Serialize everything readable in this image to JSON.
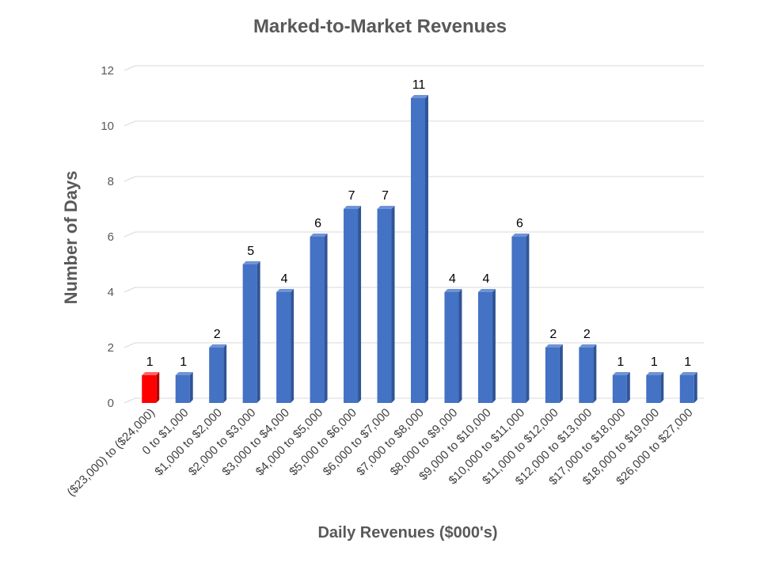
{
  "chart_data": {
    "type": "bar",
    "title": "Marked-to-Market Revenues",
    "xlabel": "Daily Revenues ($000's)",
    "ylabel": "Number of Days",
    "ylim": [
      0,
      12
    ],
    "yticks": [
      0,
      2,
      4,
      6,
      8,
      10,
      12
    ],
    "grid": true,
    "legend": "none",
    "categories": [
      "($23,000) to ($24,000)",
      "0 to $1,000",
      "$1,000 to $2,000",
      "$2,000 to $3,000",
      "$3,000 to $4,000",
      "$4,000 to $5,000",
      "$5,000 to $6,000",
      "$6,000 to $7,000",
      "$7,000 to $8,000",
      "$8,000 to $9,000",
      "$9,000 to $10,000",
      "$10,000 to $11,000",
      "$11,000 to $12,000",
      "$12,000 to $13,000",
      "$17,000 to $18,000",
      "$18,000 to $19,000",
      "$26,000 to $27,000"
    ],
    "values": [
      1,
      1,
      2,
      5,
      4,
      6,
      7,
      7,
      11,
      4,
      4,
      6,
      2,
      2,
      1,
      1,
      1
    ],
    "colors": {
      "default": "#4472c4",
      "highlight": "#ff0000"
    },
    "highlight_index": 0
  }
}
